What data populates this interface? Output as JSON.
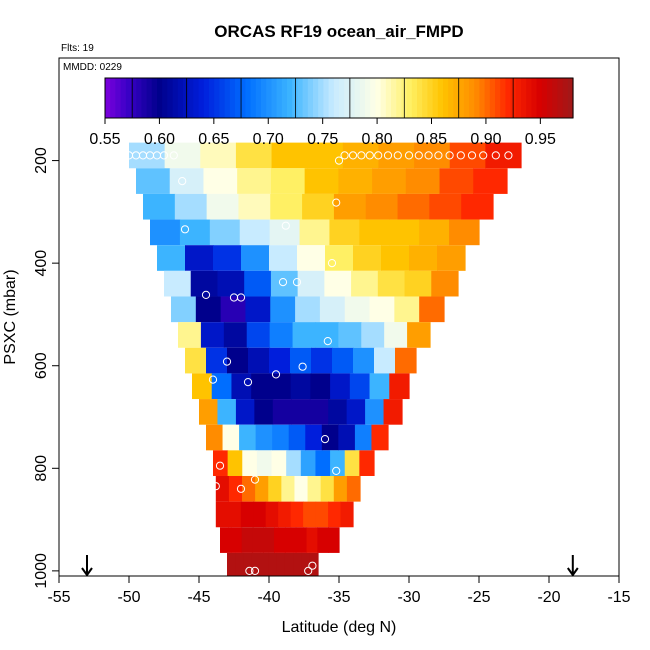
{
  "chart_data": {
    "type": "heatmap",
    "title": "ORCAS RF19 ocean_air_FMPD",
    "annotations": {
      "flights": "Flts: 19",
      "mmdd": "MMDD: 0229"
    },
    "xlabel": "Latitude (deg N)",
    "ylabel": "PSXC (mbar)",
    "xlim": [
      -55,
      -15
    ],
    "ylim": [
      1010,
      0
    ],
    "x_ticks": [
      -55,
      -50,
      -45,
      -40,
      -35,
      -30,
      -25,
      -20,
      -15
    ],
    "y_ticks": [
      200,
      400,
      600,
      800,
      1000
    ],
    "colorbar": {
      "range": [
        0.55,
        0.98
      ],
      "ticks": [
        0.55,
        0.6,
        0.65,
        0.7,
        0.75,
        0.8,
        0.85,
        0.9,
        0.95
      ],
      "tick_labels": [
        "0.55",
        "0.60",
        "0.65",
        "0.70",
        "0.75",
        "0.80",
        "0.85",
        "0.90",
        "0.95"
      ]
    },
    "arrows_at_latitude": [
      -53,
      -18.3
    ],
    "section_rows": [
      {
        "p": 190,
        "lat_min": -50,
        "lat_max": -22,
        "v": [
          0.75,
          0.79,
          0.81,
          0.84,
          0.86,
          0.86,
          0.87,
          0.88,
          0.89,
          0.91,
          0.93
        ]
      },
      {
        "p": 240,
        "lat_min": -49.5,
        "lat_max": -23,
        "v": [
          0.73,
          0.77,
          0.8,
          0.82,
          0.83,
          0.86,
          0.87,
          0.88,
          0.89,
          0.91,
          0.92
        ]
      },
      {
        "p": 290,
        "lat_min": -49,
        "lat_max": -24,
        "v": [
          0.72,
          0.75,
          0.79,
          0.81,
          0.83,
          0.85,
          0.88,
          0.89,
          0.9,
          0.91,
          0.92
        ]
      },
      {
        "p": 340,
        "lat_min": -48.5,
        "lat_max": -25,
        "v": [
          0.7,
          0.72,
          0.74,
          0.76,
          0.78,
          0.82,
          0.85,
          0.86,
          0.86,
          0.87,
          0.89
        ]
      },
      {
        "p": 390,
        "lat_min": -48,
        "lat_max": -26,
        "v": [
          0.72,
          0.63,
          0.65,
          0.7,
          0.76,
          0.8,
          0.83,
          0.85,
          0.86,
          0.87,
          0.88
        ]
      },
      {
        "p": 440,
        "lat_min": -47.5,
        "lat_max": -26.5,
        "v": [
          0.76,
          0.61,
          0.62,
          0.67,
          0.73,
          0.77,
          0.8,
          0.82,
          0.84,
          0.85,
          0.89
        ]
      },
      {
        "p": 490,
        "lat_min": -47,
        "lat_max": -27.5,
        "v": [
          0.74,
          0.6,
          0.58,
          0.63,
          0.7,
          0.75,
          0.77,
          0.79,
          0.8,
          0.82,
          0.9
        ]
      },
      {
        "p": 540,
        "lat_min": -46.5,
        "lat_max": -28.5,
        "v": [
          0.82,
          0.63,
          0.61,
          0.66,
          0.69,
          0.72,
          0.72,
          0.73,
          0.75,
          0.79,
          0.88
        ]
      },
      {
        "p": 590,
        "lat_min": -46,
        "lat_max": -29.5,
        "v": [
          0.84,
          0.65,
          0.6,
          0.62,
          0.64,
          0.67,
          0.65,
          0.67,
          0.7,
          0.76,
          0.9
        ]
      },
      {
        "p": 640,
        "lat_min": -45.5,
        "lat_max": -30,
        "v": [
          0.86,
          0.68,
          0.62,
          0.6,
          0.6,
          0.61,
          0.6,
          0.63,
          0.66,
          0.72,
          0.93
        ]
      },
      {
        "p": 690,
        "lat_min": -45,
        "lat_max": -30.5,
        "v": [
          0.88,
          0.72,
          0.63,
          0.6,
          0.59,
          0.59,
          0.59,
          0.61,
          0.63,
          0.7,
          0.93
        ]
      },
      {
        "p": 740,
        "lat_min": -44.5,
        "lat_max": -31.5,
        "v": [
          0.89,
          0.8,
          0.72,
          0.7,
          0.69,
          0.67,
          0.64,
          0.6,
          0.62,
          0.69,
          0.92
        ]
      },
      {
        "p": 790,
        "lat_min": -44,
        "lat_max": -32.5,
        "v": [
          0.92,
          0.86,
          0.8,
          0.79,
          0.8,
          0.75,
          0.71,
          0.68,
          0.72,
          0.84,
          0.92
        ]
      },
      {
        "p": 840,
        "lat_min": -43.8,
        "lat_max": -33.5,
        "v": [
          0.94,
          0.92,
          0.9,
          0.88,
          0.85,
          0.82,
          0.8,
          0.82,
          0.84,
          0.88,
          0.9
        ]
      },
      {
        "p": 890,
        "lat_min": -43.8,
        "lat_max": -34,
        "v": [
          0.94,
          0.94,
          0.95,
          0.95,
          0.94,
          0.93,
          0.92,
          0.91,
          0.91,
          0.92,
          0.93
        ]
      },
      {
        "p": 940,
        "lat_min": -43.5,
        "lat_max": -35,
        "v": [
          0.95,
          0.95,
          0.96,
          0.96,
          0.96,
          0.95,
          0.95,
          0.95,
          0.94,
          0.95,
          0.95
        ]
      },
      {
        "p": 990,
        "lat_min": -43,
        "lat_max": -36.5,
        "v": [
          0.97,
          0.97,
          0.97,
          0.97,
          0.97,
          0.97,
          0.97,
          0.97,
          0.97,
          0.97,
          0.97
        ]
      }
    ],
    "obs_points": [
      {
        "lat": -50.0,
        "p": 190
      },
      {
        "lat": -49.5,
        "p": 190
      },
      {
        "lat": -49.0,
        "p": 190
      },
      {
        "lat": -48.5,
        "p": 190
      },
      {
        "lat": -48.0,
        "p": 190
      },
      {
        "lat": -47.5,
        "p": 190
      },
      {
        "lat": -46.8,
        "p": 190
      },
      {
        "lat": -35.0,
        "p": 200
      },
      {
        "lat": -34.6,
        "p": 190
      },
      {
        "lat": -34.0,
        "p": 190
      },
      {
        "lat": -33.4,
        "p": 190
      },
      {
        "lat": -32.8,
        "p": 190
      },
      {
        "lat": -32.2,
        "p": 190
      },
      {
        "lat": -31.5,
        "p": 190
      },
      {
        "lat": -30.8,
        "p": 190
      },
      {
        "lat": -30.0,
        "p": 190
      },
      {
        "lat": -29.3,
        "p": 190
      },
      {
        "lat": -28.6,
        "p": 190
      },
      {
        "lat": -27.9,
        "p": 190
      },
      {
        "lat": -27.1,
        "p": 190
      },
      {
        "lat": -26.3,
        "p": 190
      },
      {
        "lat": -25.5,
        "p": 190
      },
      {
        "lat": -24.7,
        "p": 190
      },
      {
        "lat": -23.8,
        "p": 190
      },
      {
        "lat": -22.9,
        "p": 190
      },
      {
        "lat": -46.2,
        "p": 240
      },
      {
        "lat": -35.2,
        "p": 282
      },
      {
        "lat": -38.8,
        "p": 327
      },
      {
        "lat": -46.0,
        "p": 334
      },
      {
        "lat": -35.5,
        "p": 400
      },
      {
        "lat": -38.0,
        "p": 437
      },
      {
        "lat": -39.0,
        "p": 437
      },
      {
        "lat": -44.5,
        "p": 462
      },
      {
        "lat": -42.5,
        "p": 467
      },
      {
        "lat": -42.0,
        "p": 467
      },
      {
        "lat": -35.8,
        "p": 552
      },
      {
        "lat": -43.0,
        "p": 592
      },
      {
        "lat": -37.6,
        "p": 602
      },
      {
        "lat": -39.5,
        "p": 617
      },
      {
        "lat": -44.0,
        "p": 627
      },
      {
        "lat": -41.5,
        "p": 632
      },
      {
        "lat": -36.0,
        "p": 743
      },
      {
        "lat": -43.5,
        "p": 795
      },
      {
        "lat": -35.2,
        "p": 805
      },
      {
        "lat": -41.0,
        "p": 822
      },
      {
        "lat": -43.8,
        "p": 835
      },
      {
        "lat": -42.0,
        "p": 840
      },
      {
        "lat": -36.9,
        "p": 990
      },
      {
        "lat": -44.2,
        "p": 1000
      },
      {
        "lat": -43.9,
        "p": 1000
      },
      {
        "lat": -41.4,
        "p": 1000
      },
      {
        "lat": -41.0,
        "p": 1000
      },
      {
        "lat": -37.2,
        "p": 1000
      }
    ]
  }
}
